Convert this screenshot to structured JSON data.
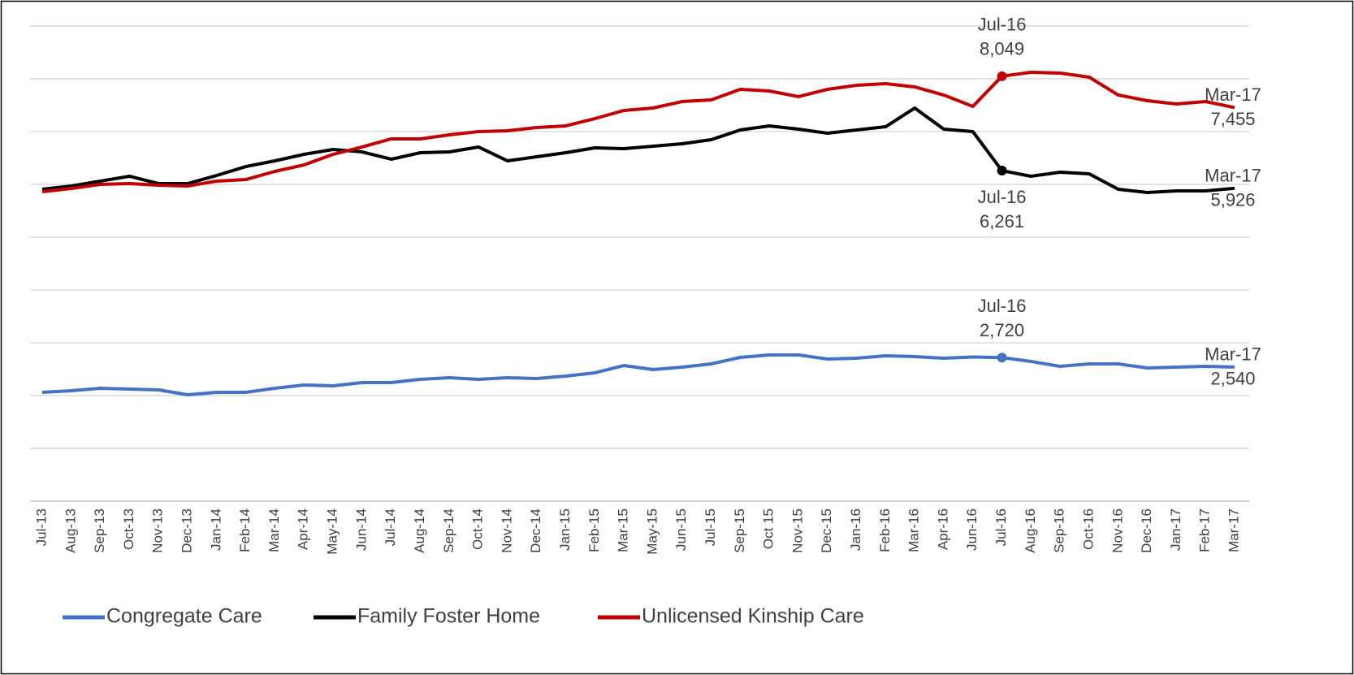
{
  "chart_data": {
    "type": "line",
    "categories": [
      "Jul-13",
      "Aug-13",
      "Sep-13",
      "Oct-13",
      "Nov-13",
      "Dec-13",
      "Jan-14",
      "Feb-14",
      "Mar-14",
      "Apr-14",
      "May-14",
      "Jun-14",
      "Jul-14",
      "Aug-14",
      "Sep-14",
      "Oct-14",
      "Nov-14",
      "Dec-14",
      "Jan-15",
      "Feb-15",
      "Mar-15",
      "May-15",
      "Jun-15",
      "Jul-15",
      "Sep-15",
      "Oct 15",
      "Nov-15",
      "Dec-15",
      "Jan-16",
      "Feb-16",
      "Mar-16",
      "Apr-16",
      "Jun-16",
      "Jul-16",
      "Aug-16",
      "Sep-16",
      "Oct-16",
      "Nov-16",
      "Dec-16",
      "Jan-17",
      "Feb-17",
      "Mar-17"
    ],
    "series": [
      {
        "name": "Congregate Care",
        "color": "#4472c4",
        "values": [
          2062,
          2092,
          2138,
          2123,
          2108,
          2015,
          2062,
          2062,
          2138,
          2200,
          2185,
          2246,
          2246,
          2308,
          2338,
          2308,
          2338,
          2323,
          2369,
          2431,
          2569,
          2492,
          2538,
          2600,
          2723,
          2769,
          2769,
          2692,
          2708,
          2754,
          2738,
          2708,
          2730,
          2720,
          2646,
          2554,
          2600,
          2600,
          2523,
          2538,
          2554,
          2540
        ],
        "value_labels": [
          null,
          null,
          null,
          null,
          null,
          null,
          null,
          null,
          null,
          null,
          null,
          null,
          null,
          null,
          null,
          null,
          null,
          null,
          null,
          null,
          null,
          null,
          null,
          null,
          null,
          null,
          null,
          null,
          null,
          null,
          null,
          null,
          null,
          "2,720",
          null,
          null,
          null,
          null,
          null,
          null,
          null,
          "2,540"
        ]
      },
      {
        "name": "Family Foster Home",
        "color": "#000000",
        "values": [
          5908,
          5969,
          6062,
          6154,
          6015,
          6015,
          6169,
          6338,
          6446,
          6569,
          6662,
          6615,
          6477,
          6600,
          6615,
          6708,
          6446,
          6523,
          6600,
          6692,
          6677,
          6723,
          6769,
          6846,
          7031,
          7108,
          7046,
          6969,
          7031,
          7092,
          7446,
          7046,
          7000,
          6261,
          6154,
          6231,
          6200,
          5908,
          5846,
          5877,
          5877,
          5926
        ],
        "value_labels": [
          null,
          null,
          null,
          null,
          null,
          null,
          null,
          null,
          null,
          null,
          null,
          null,
          null,
          null,
          null,
          null,
          null,
          null,
          null,
          null,
          null,
          null,
          null,
          null,
          null,
          null,
          null,
          null,
          null,
          null,
          null,
          null,
          null,
          "6,261",
          null,
          null,
          null,
          null,
          null,
          null,
          null,
          "5,926"
        ]
      },
      {
        "name": "Unlicensed Kinship Care",
        "color": "#c00000",
        "values": [
          5862,
          5923,
          6000,
          6015,
          5985,
          5969,
          6062,
          6092,
          6246,
          6369,
          6569,
          6708,
          6862,
          6862,
          6938,
          7000,
          7015,
          7077,
          7108,
          7246,
          7400,
          7446,
          7569,
          7600,
          7800,
          7769,
          7662,
          7800,
          7877,
          7908,
          7846,
          7692,
          7477,
          8049,
          8123,
          8108,
          8031,
          7692,
          7585,
          7523,
          7569,
          7455
        ],
        "value_labels": [
          null,
          null,
          null,
          null,
          null,
          null,
          null,
          null,
          null,
          null,
          null,
          null,
          null,
          null,
          null,
          null,
          null,
          null,
          null,
          null,
          null,
          null,
          null,
          null,
          null,
          null,
          null,
          null,
          null,
          null,
          null,
          null,
          null,
          "8,049",
          null,
          null,
          null,
          null,
          null,
          null,
          null,
          "7,455"
        ]
      }
    ],
    "ylim": [
      0,
      9000
    ],
    "yticks": [
      0,
      1000,
      2000,
      3000,
      4000,
      5000,
      6000,
      7000,
      8000,
      9000
    ],
    "grid": true,
    "legend": "bottom"
  }
}
